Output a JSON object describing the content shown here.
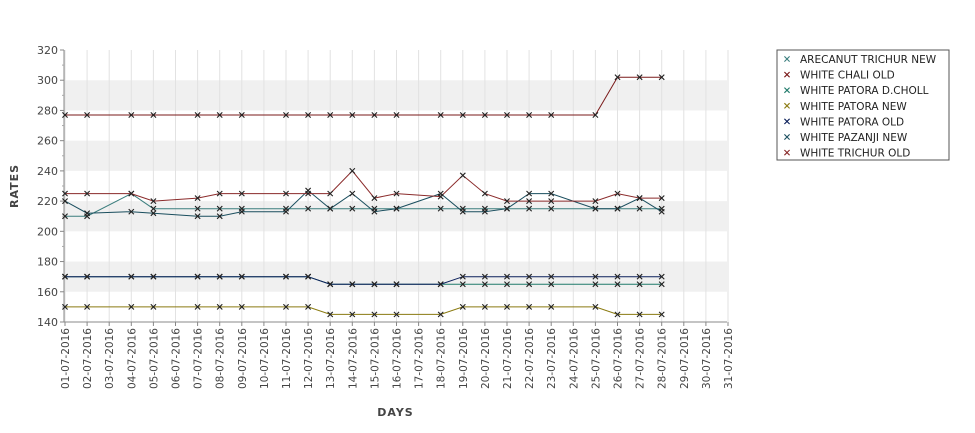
{
  "chart_data": {
    "type": "line",
    "title": "",
    "xlabel": "DAYS",
    "ylabel": "RATES",
    "ylim": [
      140,
      320
    ],
    "yticks": [
      140,
      160,
      180,
      200,
      220,
      240,
      260,
      280,
      300,
      320
    ],
    "grid": "alternating horizontal bands",
    "legend_position": "right",
    "categories": [
      "01-07-2016",
      "02-07-2016",
      "03-07-2016",
      "04-07-2016",
      "05-07-2016",
      "06-07-2016",
      "07-07-2016",
      "08-07-2016",
      "09-07-2016",
      "10-07-2016",
      "11-07-2016",
      "12-07-2016",
      "13-07-2016",
      "14-07-2016",
      "15-07-2016",
      "16-07-2016",
      "17-07-2016",
      "18-07-2016",
      "19-07-2016",
      "20-07-2016",
      "21-07-2016",
      "22-07-2016",
      "23-07-2016",
      "24-07-2016",
      "25-07-2016",
      "26-07-2016",
      "27-07-2016",
      "28-07-2016",
      "29-07-2016",
      "30-07-2016",
      "31-07-2016"
    ],
    "series": [
      {
        "name": "ARECANUT TRICHUR NEW",
        "color": "#3a7d7d",
        "values": [
          210,
          210,
          null,
          225,
          215,
          null,
          215,
          215,
          215,
          null,
          215,
          215,
          215,
          215,
          215,
          215,
          null,
          215,
          215,
          215,
          215,
          215,
          215,
          null,
          215,
          215,
          215,
          215,
          null,
          null,
          null
        ]
      },
      {
        "name": "WHITE CHALI OLD",
        "color": "#7a1a1a",
        "values": [
          277,
          277,
          null,
          277,
          277,
          null,
          277,
          277,
          277,
          null,
          277,
          277,
          277,
          277,
          277,
          277,
          null,
          277,
          277,
          277,
          277,
          277,
          277,
          null,
          277,
          302,
          302,
          302,
          null,
          null,
          null
        ]
      },
      {
        "name": "WHITE PATORA D.CHOLL",
        "color": "#1f7a6a",
        "values": [
          170,
          170,
          null,
          170,
          170,
          null,
          170,
          170,
          170,
          null,
          170,
          170,
          165,
          165,
          165,
          165,
          null,
          165,
          165,
          165,
          165,
          165,
          165,
          null,
          165,
          165,
          165,
          165,
          null,
          null,
          null
        ]
      },
      {
        "name": "WHITE PATORA NEW",
        "color": "#8a7a10",
        "values": [
          150,
          150,
          null,
          150,
          150,
          null,
          150,
          150,
          150,
          null,
          150,
          150,
          145,
          145,
          145,
          145,
          null,
          145,
          150,
          150,
          150,
          150,
          150,
          null,
          150,
          145,
          145,
          145,
          null,
          null,
          null
        ]
      },
      {
        "name": "WHITE PATORA OLD",
        "color": "#0b1f5a",
        "values": [
          170,
          170,
          null,
          170,
          170,
          null,
          170,
          170,
          170,
          null,
          170,
          170,
          165,
          165,
          165,
          165,
          null,
          165,
          170,
          170,
          170,
          170,
          170,
          null,
          170,
          170,
          170,
          170,
          null,
          null,
          null
        ]
      },
      {
        "name": "WHITE PAZANJI NEW",
        "color": "#1a4e5e",
        "values": [
          220,
          212,
          null,
          213,
          212,
          null,
          210,
          210,
          213,
          null,
          213,
          227,
          215,
          225,
          213,
          215,
          null,
          225,
          213,
          213,
          215,
          225,
          225,
          null,
          215,
          215,
          222,
          213,
          null,
          null,
          null
        ]
      },
      {
        "name": "WHITE TRICHUR OLD",
        "color": "#8a2a2a",
        "values": [
          225,
          225,
          null,
          225,
          220,
          null,
          222,
          225,
          225,
          null,
          225,
          225,
          225,
          240,
          222,
          225,
          null,
          223,
          237,
          225,
          220,
          220,
          220,
          null,
          220,
          225,
          222,
          222,
          null,
          null,
          null
        ]
      }
    ]
  }
}
